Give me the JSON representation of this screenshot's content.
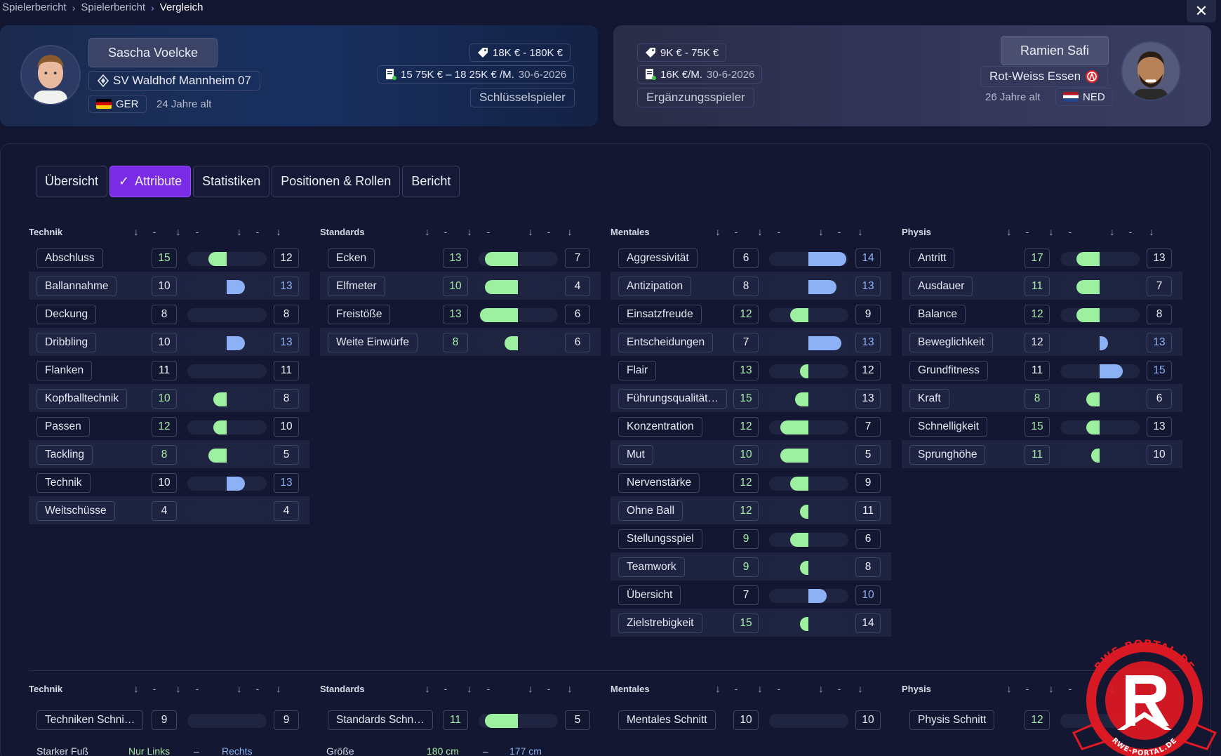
{
  "breadcrumb": [
    "Spielerbericht",
    "Spielerbericht",
    "Vergleich"
  ],
  "left_player": {
    "name": "Sascha Voelcke",
    "club": "SV Waldhof Mannheim 07",
    "nation": "GER",
    "age": "24 Jahre alt",
    "value": "18K € - 180K €",
    "contract_amount": "15 75K € – 18 25K € /M.",
    "contract_end": "30-6-2026",
    "role": "Schlüsselspieler"
  },
  "right_player": {
    "name": "Ramien Safi",
    "club": "Rot-Weiss Essen",
    "nation": "NED",
    "age": "26 Jahre alt",
    "value": "9K € - 75K €",
    "contract_amount": "16K €/M.",
    "contract_end": "30-6-2026",
    "role": "Ergänzungsspieler"
  },
  "tabs": [
    "Übersicht",
    "Attribute",
    "Statistiken",
    "Positionen & Rollen",
    "Bericht"
  ],
  "active_tab": 1,
  "sort_dash": "-",
  "colors": {
    "accent": "#7a2be6",
    "green": "#a6eea8",
    "blue": "#8cb2f5"
  },
  "sections": [
    {
      "title": "Technik",
      "rows": [
        {
          "name": "Abschluss",
          "a": 15,
          "b": 12
        },
        {
          "name": "Ballannahme",
          "a": 10,
          "b": 13
        },
        {
          "name": "Deckung",
          "a": 8,
          "b": 8
        },
        {
          "name": "Dribbling",
          "a": 10,
          "b": 13
        },
        {
          "name": "Flanken",
          "a": 11,
          "b": 11
        },
        {
          "name": "Kopfballtechnik",
          "a": 10,
          "b": 8
        },
        {
          "name": "Passen",
          "a": 12,
          "b": 10
        },
        {
          "name": "Tackling",
          "a": 8,
          "b": 5
        },
        {
          "name": "Technik",
          "a": 10,
          "b": 13
        },
        {
          "name": "Weitschüsse",
          "a": 4,
          "b": 4
        }
      ]
    },
    {
      "title": "Standards",
      "rows": [
        {
          "name": "Ecken",
          "a": 13,
          "b": 7
        },
        {
          "name": "Elfmeter",
          "a": 10,
          "b": 4
        },
        {
          "name": "Freistöße",
          "a": 13,
          "b": 6
        },
        {
          "name": "Weite Einwürfe",
          "a": 8,
          "b": 6
        }
      ]
    },
    {
      "title": "Mentales",
      "rows": [
        {
          "name": "Aggressivität",
          "a": 6,
          "b": 14
        },
        {
          "name": "Antizipation",
          "a": 8,
          "b": 13
        },
        {
          "name": "Einsatzfreude",
          "a": 12,
          "b": 9
        },
        {
          "name": "Entscheidungen",
          "a": 7,
          "b": 13
        },
        {
          "name": "Flair",
          "a": 13,
          "b": 12
        },
        {
          "name": "Führungsqualität…",
          "a": 15,
          "b": 13
        },
        {
          "name": "Konzentration",
          "a": 12,
          "b": 7
        },
        {
          "name": "Mut",
          "a": 10,
          "b": 5
        },
        {
          "name": "Nervenstärke",
          "a": 12,
          "b": 9
        },
        {
          "name": "Ohne Ball",
          "a": 12,
          "b": 11
        },
        {
          "name": "Stellungsspiel",
          "a": 9,
          "b": 6
        },
        {
          "name": "Teamwork",
          "a": 9,
          "b": 8
        },
        {
          "name": "Übersicht",
          "a": 7,
          "b": 10
        },
        {
          "name": "Zielstrebigkeit",
          "a": 15,
          "b": 14
        }
      ]
    },
    {
      "title": "Physis",
      "rows": [
        {
          "name": "Antritt",
          "a": 17,
          "b": 13
        },
        {
          "name": "Ausdauer",
          "a": 11,
          "b": 7
        },
        {
          "name": "Balance",
          "a": 12,
          "b": 8
        },
        {
          "name": "Beweglichkeit",
          "a": 12,
          "b": 13
        },
        {
          "name": "Grundfitness",
          "a": 11,
          "b": 15
        },
        {
          "name": "Kraft",
          "a": 8,
          "b": 6
        },
        {
          "name": "Schnelligkeit",
          "a": 15,
          "b": 13
        },
        {
          "name": "Sprunghöhe",
          "a": 11,
          "b": 10
        }
      ]
    }
  ],
  "summary": [
    {
      "title": "Technik",
      "name": "Techniken Schni…",
      "a": 9,
      "b": 9
    },
    {
      "title": "Standards",
      "name": "Standards Schn…",
      "a": 11,
      "b": 5
    },
    {
      "title": "Mentales",
      "name": "Mentales Schnitt",
      "a": 10,
      "b": 10
    },
    {
      "title": "Physis",
      "name": "Physis Schnitt",
      "a": 12,
      "b": null
    }
  ],
  "footer": {
    "foot_label": "Starker Fuß",
    "foot_a": "Nur Links",
    "foot_sep": "–",
    "foot_b": "Rechts",
    "height_label": "Größe",
    "height_a": "180 cm",
    "height_sep": "–",
    "height_b": "177 cm"
  },
  "watermark_text": "RWE-PORTAL.DE"
}
